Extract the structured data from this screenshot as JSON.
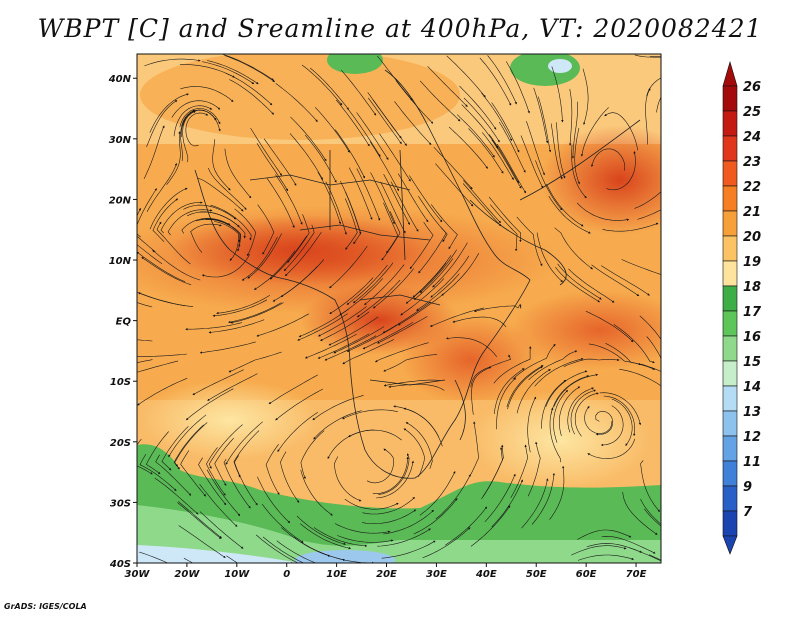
{
  "title": "WBPT [C] and Sreamline at 400hPa, VT: 2020082421",
  "credit": "GrADS: IGES/COLA",
  "axes": {
    "lon_labels": [
      "30W",
      "20W",
      "10W",
      "0",
      "10E",
      "20E",
      "30E",
      "40E",
      "50E",
      "60E",
      "70E"
    ],
    "lon_values": [
      -30,
      -20,
      -10,
      0,
      10,
      20,
      30,
      40,
      50,
      60,
      70
    ],
    "lat_labels": [
      "40N",
      "30N",
      "20N",
      "10N",
      "EQ",
      "10S",
      "20S",
      "30S",
      "40S"
    ],
    "lat_values": [
      40,
      30,
      20,
      10,
      0,
      -10,
      -20,
      -30,
      -40
    ],
    "lon_range": [
      -30,
      75
    ],
    "lat_range": [
      -40,
      44
    ]
  },
  "colorbar": {
    "labels": [
      "26",
      "25",
      "24",
      "23",
      "22",
      "21",
      "20",
      "19",
      "18",
      "17",
      "16",
      "15",
      "14",
      "13",
      "12",
      "11",
      "9",
      "7"
    ],
    "colors": [
      "#a50a0a",
      "#c41a12",
      "#e0361c",
      "#f05a1e",
      "#f57f22",
      "#f7a03a",
      "#fbc364",
      "#fde39c",
      "#3dae45",
      "#5ec558",
      "#8fd98a",
      "#c6eec8",
      "#b4dcf5",
      "#8cc2ee",
      "#63a2e4",
      "#3f80d8",
      "#2860c8",
      "#1a44b0"
    ]
  },
  "fill_colors": {
    "deep_red": "#d9441c",
    "orange_red": "#e6652a",
    "orange": "#f08a30",
    "light_orange": "#f7ab4e",
    "pale_orange": "#fbc97c",
    "yellow": "#fde6a2",
    "green": "#5aba55",
    "light_green": "#8fd98a",
    "pale_blue": "#cfe8f7",
    "blue": "#9cc8ee"
  }
}
